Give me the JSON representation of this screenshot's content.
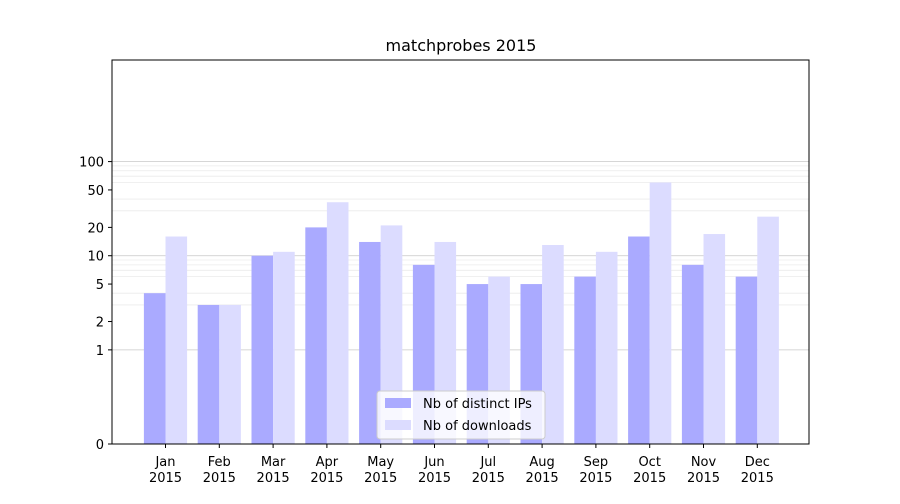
{
  "chart_data": {
    "type": "bar",
    "title": "matchprobes 2015",
    "xlabel": "",
    "ylabel": "",
    "yscale": "symlog",
    "ylim": [
      0,
      120
    ],
    "yticks": [
      0,
      1,
      2,
      5,
      10,
      20,
      50,
      100
    ],
    "grid": true,
    "legend_position": "lower-center",
    "categories": [
      "Jan\n2015",
      "Feb\n2015",
      "Mar\n2015",
      "Apr\n2015",
      "May\n2015",
      "Jun\n2015",
      "Jul\n2015",
      "Aug\n2015",
      "Sep\n2015",
      "Oct\n2015",
      "Nov\n2015",
      "Dec\n2015"
    ],
    "series": [
      {
        "name": "Nb of distinct IPs",
        "color": "#aaaaff",
        "values": [
          4,
          3,
          10,
          20,
          14,
          8,
          5,
          5,
          6,
          16,
          8,
          6
        ]
      },
      {
        "name": "Nb of downloads",
        "color": "#dcdcff",
        "values": [
          16,
          3,
          11,
          37,
          21,
          14,
          6,
          13,
          11,
          60,
          17,
          26
        ]
      }
    ]
  }
}
